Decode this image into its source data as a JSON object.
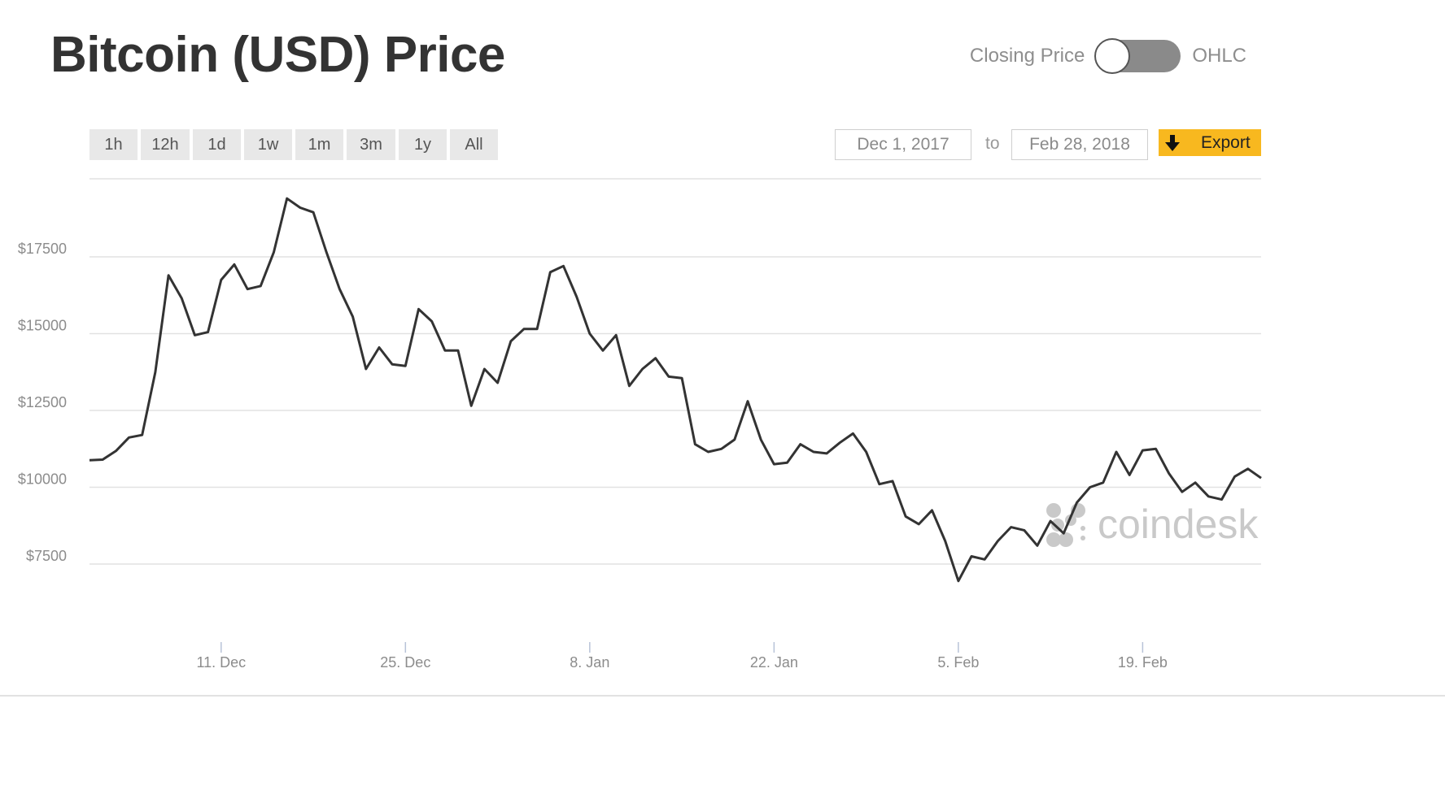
{
  "header": {
    "title": "Bitcoin (USD) Price",
    "toggle": {
      "left_label": "Closing Price",
      "right_label": "OHLC"
    }
  },
  "toolbar": {
    "ranges": [
      "1h",
      "12h",
      "1d",
      "1w",
      "1m",
      "3m",
      "1y",
      "All"
    ],
    "date_from": "Dec 1, 2017",
    "date_to_label": "to",
    "date_to": "Feb 28, 2018",
    "export_label": "Export",
    "export_icon": "download-arrow-icon",
    "export_color": "#f8b81f"
  },
  "watermark": {
    "text": "coindesk"
  },
  "colors": {
    "line": "#333333",
    "grid": "#e2e2e2",
    "tick_text": "#8c8c8c"
  },
  "chart_data": {
    "type": "line",
    "title": "Bitcoin (USD) Price",
    "x_start": "2017-12-01",
    "x_tick_labels": [
      {
        "label": "11. Dec",
        "date": "2017-12-11"
      },
      {
        "label": "25. Dec",
        "date": "2017-12-25"
      },
      {
        "label": "8. Jan",
        "date": "2018-01-08"
      },
      {
        "label": "22. Jan",
        "date": "2018-01-22"
      },
      {
        "label": "5. Feb",
        "date": "2018-02-05"
      },
      {
        "label": "19. Feb",
        "date": "2018-02-19"
      }
    ],
    "y_ticks": [
      {
        "label": "$7500",
        "value": 7500
      },
      {
        "label": "$10000",
        "value": 10000
      },
      {
        "label": "$12500",
        "value": 12500
      },
      {
        "label": "$15000",
        "value": 15000
      },
      {
        "label": "$17500",
        "value": 17500
      }
    ],
    "ylim": [
      5000,
      20000
    ],
    "grid": true,
    "legend": "none",
    "series": [
      {
        "values": [
          10880,
          10900,
          11180,
          11620,
          11700,
          13750,
          16900,
          16150,
          14950,
          15050,
          16750,
          17250,
          16450,
          16550,
          17650,
          19400,
          19100,
          18950,
          17650,
          16450,
          15550,
          13850,
          14550,
          14000,
          13950,
          15800,
          15400,
          14450,
          14450,
          12650,
          13850,
          13400,
          14750,
          15150,
          15150,
          17000,
          17200,
          16200,
          15000,
          14450,
          14950,
          13300,
          13850,
          14200,
          13600,
          13550,
          11400,
          11150,
          11250,
          11550,
          12800,
          11550,
          10750,
          10800,
          11400,
          11150,
          11100,
          11450,
          11750,
          11150,
          10100,
          10200,
          9050,
          8800,
          9250,
          8250,
          6950,
          7750,
          7650,
          8250,
          8700,
          8600,
          8100,
          8900,
          8500,
          9500,
          10000,
          10150,
          11150,
          10400,
          11200,
          11250,
          10450,
          9850,
          10150,
          9700,
          9600,
          10350,
          10600,
          10300
        ]
      }
    ]
  }
}
